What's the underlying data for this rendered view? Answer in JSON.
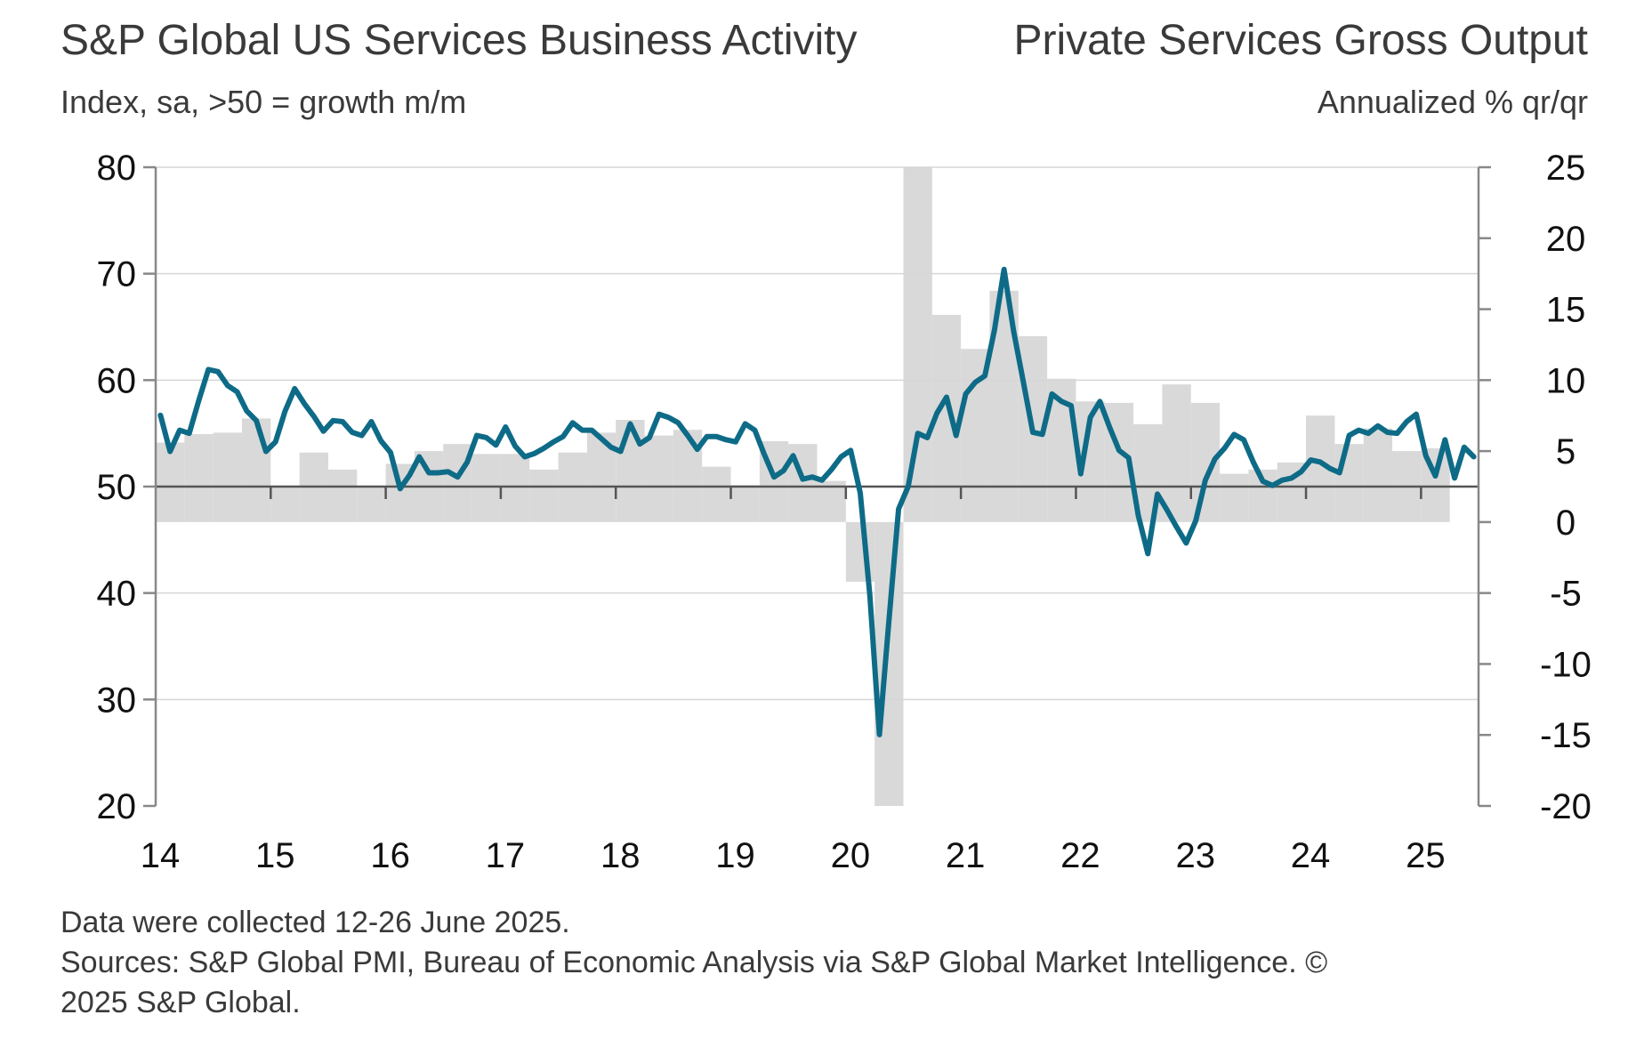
{
  "titles": {
    "left": "S&P Global US Services Business Activity",
    "right": "Private Services Gross Output"
  },
  "subtitles": {
    "left": "Index, sa, >50 = growth m/m",
    "right": "Annualized % qr/qr"
  },
  "footer": {
    "line1": "Data were collected 12-26 June 2025.",
    "line2": "Sources: S&P Global PMI, Bureau of Economic Analysis via S&P Global Market Intelligence. ©",
    "line3": "2025 S&P Global."
  },
  "chart_data": {
    "type": "line+bar",
    "x_tick_labels": [
      "14",
      "15",
      "16",
      "17",
      "18",
      "19",
      "20",
      "21",
      "22",
      "23",
      "24",
      "25"
    ],
    "left_axis": {
      "ylim": [
        20,
        80
      ],
      "ticks": [
        20,
        30,
        40,
        50,
        60,
        70,
        80
      ],
      "reference_line": 50
    },
    "right_axis": {
      "ylim": [
        -20,
        25
      ],
      "ticks": [
        -20,
        -15,
        -10,
        -5,
        0,
        5,
        10,
        15,
        20,
        25
      ]
    },
    "grid": true,
    "colors": {
      "line": "#0e6b87",
      "bars": "#d9d9d9",
      "grid": "#d6d6d6",
      "axis": "#888888",
      "ref_line": "#555555"
    },
    "series": [
      {
        "axis": "right",
        "kind": "bar",
        "x": [
          "2014-01",
          "2014-04",
          "2014-07",
          "2014-10",
          "2015-01",
          "2015-04",
          "2015-07",
          "2015-10",
          "2016-01",
          "2016-04",
          "2016-07",
          "2016-10",
          "2017-01",
          "2017-04",
          "2017-07",
          "2017-10",
          "2018-01",
          "2018-04",
          "2018-07",
          "2018-10",
          "2019-01",
          "2019-04",
          "2019-07",
          "2019-10",
          "2020-01",
          "2020-04",
          "2020-07",
          "2020-10",
          "2021-01",
          "2021-04",
          "2021-07",
          "2021-10",
          "2022-01",
          "2022-04",
          "2022-07",
          "2022-10",
          "2023-01",
          "2023-04",
          "2023-07",
          "2023-10",
          "2024-01",
          "2024-04",
          "2024-07",
          "2024-10",
          "2025-01"
        ],
        "values": [
          5.6,
          6.2,
          6.3,
          7.3,
          2.5,
          4.9,
          3.7,
          2.5,
          4.1,
          5.0,
          5.5,
          4.8,
          4.8,
          3.7,
          4.9,
          6.3,
          7.2,
          6.1,
          6.5,
          3.9,
          2.6,
          5.7,
          5.5,
          2.9,
          -4.2,
          -20,
          25,
          14.6,
          12.2,
          16.3,
          13.1,
          10.1,
          8.5,
          8.4,
          6.9,
          9.7,
          8.4,
          3.4,
          3.7,
          4.2,
          7.5,
          5.5,
          6.6,
          5.0,
          5.2
        ]
      },
      {
        "axis": "left",
        "kind": "line",
        "x": [
          "2014-01",
          "2014-02",
          "2014-03",
          "2014-04",
          "2014-05",
          "2014-06",
          "2014-07",
          "2014-08",
          "2014-09",
          "2014-10",
          "2014-11",
          "2014-12",
          "2015-01",
          "2015-02",
          "2015-03",
          "2015-04",
          "2015-05",
          "2015-06",
          "2015-07",
          "2015-08",
          "2015-09",
          "2015-10",
          "2015-11",
          "2015-12",
          "2016-01",
          "2016-02",
          "2016-03",
          "2016-04",
          "2016-05",
          "2016-06",
          "2016-07",
          "2016-08",
          "2016-09",
          "2016-10",
          "2016-11",
          "2016-12",
          "2017-01",
          "2017-02",
          "2017-03",
          "2017-04",
          "2017-05",
          "2017-06",
          "2017-07",
          "2017-08",
          "2017-09",
          "2017-10",
          "2017-11",
          "2017-12",
          "2018-01",
          "2018-02",
          "2018-03",
          "2018-04",
          "2018-05",
          "2018-06",
          "2018-07",
          "2018-08",
          "2018-09",
          "2018-10",
          "2018-11",
          "2018-12",
          "2019-01",
          "2019-02",
          "2019-03",
          "2019-04",
          "2019-05",
          "2019-06",
          "2019-07",
          "2019-08",
          "2019-09",
          "2019-10",
          "2019-11",
          "2019-12",
          "2020-01",
          "2020-02",
          "2020-03",
          "2020-04",
          "2020-05",
          "2020-06",
          "2020-07",
          "2020-08",
          "2020-09",
          "2020-10",
          "2020-11",
          "2020-12",
          "2021-01",
          "2021-02",
          "2021-03",
          "2021-04",
          "2021-05",
          "2021-06",
          "2021-07",
          "2021-08",
          "2021-09",
          "2021-10",
          "2021-11",
          "2021-12",
          "2022-01",
          "2022-02",
          "2022-03",
          "2022-04",
          "2022-05",
          "2022-06",
          "2022-07",
          "2022-08",
          "2022-09",
          "2022-10",
          "2022-11",
          "2022-12",
          "2023-01",
          "2023-02",
          "2023-03",
          "2023-04",
          "2023-05",
          "2023-06",
          "2023-07",
          "2023-08",
          "2023-09",
          "2023-10",
          "2023-11",
          "2023-12",
          "2024-01",
          "2024-02",
          "2024-03",
          "2024-04",
          "2024-05",
          "2024-06",
          "2024-07",
          "2024-08",
          "2024-09",
          "2024-10",
          "2024-11",
          "2024-12",
          "2025-01",
          "2025-02",
          "2025-03",
          "2025-04",
          "2025-05",
          "2025-06"
        ],
        "values": [
          56.7,
          53.3,
          55.3,
          55.0,
          58.1,
          61.0,
          60.8,
          59.5,
          58.9,
          57.1,
          56.2,
          53.3,
          54.2,
          57.1,
          59.2,
          57.8,
          56.6,
          55.2,
          56.2,
          56.1,
          55.1,
          54.8,
          56.1,
          54.3,
          53.2,
          49.8,
          51.1,
          52.8,
          51.3,
          51.3,
          51.4,
          50.9,
          52.3,
          54.8,
          54.6,
          53.9,
          55.6,
          53.8,
          52.8,
          53.1,
          53.6,
          54.2,
          54.7,
          56.0,
          55.3,
          55.3,
          54.5,
          53.7,
          53.3,
          55.9,
          54.0,
          54.6,
          56.8,
          56.5,
          56.0,
          54.8,
          53.5,
          54.7,
          54.7,
          54.4,
          54.2,
          55.9,
          55.3,
          53.0,
          50.9,
          51.5,
          52.9,
          50.7,
          50.9,
          50.6,
          51.6,
          52.8,
          53.4,
          49.4,
          39.8,
          26.7,
          37.5,
          47.9,
          50.0,
          55.0,
          54.6,
          56.9,
          58.4,
          54.8,
          58.7,
          59.8,
          60.4,
          64.7,
          70.4,
          64.6,
          59.9,
          55.1,
          54.9,
          58.7,
          58.0,
          57.6,
          51.2,
          56.5,
          58.0,
          55.6,
          53.4,
          52.7,
          47.3,
          43.7,
          49.3,
          47.8,
          46.2,
          44.7,
          46.8,
          50.6,
          52.6,
          53.6,
          54.9,
          54.4,
          52.3,
          50.5,
          50.1,
          50.6,
          50.8,
          51.4,
          52.5,
          52.3,
          51.7,
          51.3,
          54.8,
          55.3,
          55.0,
          55.7,
          55.1,
          55.0,
          56.1,
          56.8,
          52.9,
          51.0,
          54.4,
          50.8,
          53.7,
          52.8
        ]
      }
    ]
  }
}
